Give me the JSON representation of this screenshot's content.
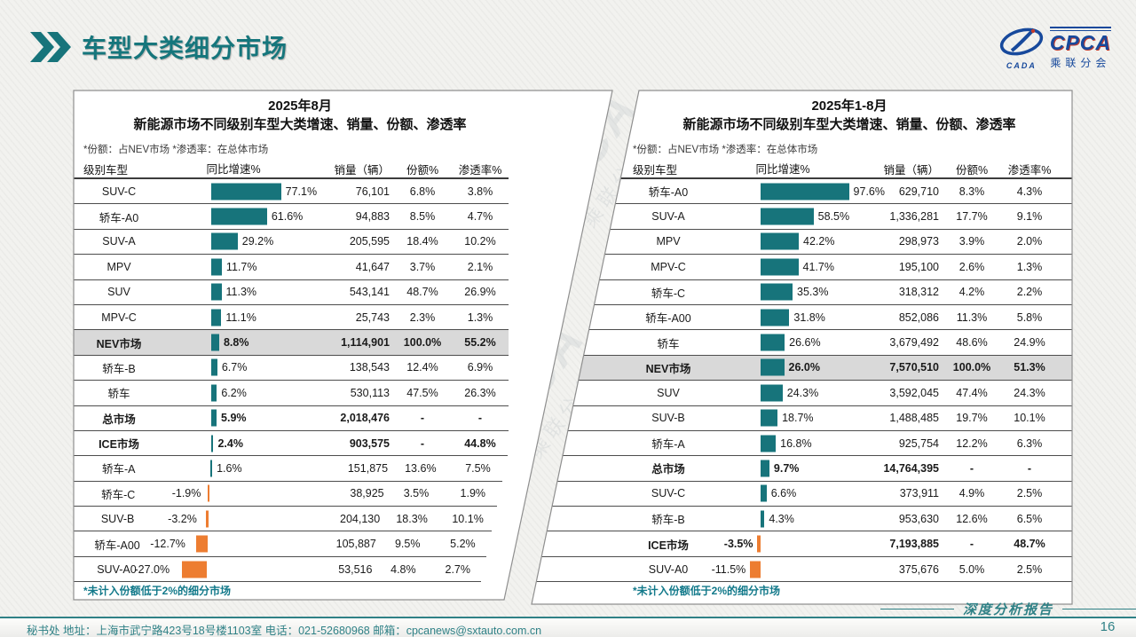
{
  "page": {
    "title": "车型大类细分市场",
    "page_number": "16",
    "report_label": "深度分析报告",
    "footer": "秘书处   地址：上海市武宁路423号18号楼1103室  电话：021-52680968   邮箱：cpcanews@sxtauto.com.cn",
    "watermark": {
      "line1": "CPCA",
      "line2": "乘联分会"
    }
  },
  "logo": {
    "cada": "CADA",
    "cpca": "CPCA",
    "sub": "乘联分会"
  },
  "colors": {
    "accent_teal": "#17747b",
    "accent_orange": "#ed7d31",
    "title_teal": "#16767c",
    "footer_teal": "#2f8186",
    "logo_blue": "#17499c",
    "highlight_gray": "#d9d9d9"
  },
  "chart_data": {
    "type": "bar",
    "orientation": "horizontal",
    "bar_unit": "percent",
    "panels": [
      {
        "period": "2025年8月",
        "title": "新能源市场不同级别车型大类增速、销量、份额、渗透率",
        "note": "*份额：占NEV市场  *渗透率：在总体市场",
        "columns": [
          "级别车型",
          "同比增速%",
          "销量（辆）",
          "份额%",
          "渗透率%"
        ],
        "footnote": "*未计入份额低于2%的细分市场",
        "rows": [
          {
            "category": "SUV-C",
            "growth": 77.1,
            "sales": "76,101",
            "share": "6.8%",
            "penetration": "3.8%",
            "bold": false,
            "highlight": false
          },
          {
            "category": "轿车-A0",
            "growth": 61.6,
            "sales": "94,883",
            "share": "8.5%",
            "penetration": "4.7%",
            "bold": false,
            "highlight": false
          },
          {
            "category": "SUV-A",
            "growth": 29.2,
            "sales": "205,595",
            "share": "18.4%",
            "penetration": "10.2%",
            "bold": false,
            "highlight": false
          },
          {
            "category": "MPV",
            "growth": 11.7,
            "sales": "41,647",
            "share": "3.7%",
            "penetration": "2.1%",
            "bold": false,
            "highlight": false
          },
          {
            "category": "SUV",
            "growth": 11.3,
            "sales": "543,141",
            "share": "48.7%",
            "penetration": "26.9%",
            "bold": false,
            "highlight": false
          },
          {
            "category": "MPV-C",
            "growth": 11.1,
            "sales": "25,743",
            "share": "2.3%",
            "penetration": "1.3%",
            "bold": false,
            "highlight": false
          },
          {
            "category": "NEV市场",
            "growth": 8.8,
            "sales": "1,114,901",
            "share": "100.0%",
            "penetration": "55.2%",
            "bold": true,
            "highlight": true
          },
          {
            "category": "轿车-B",
            "growth": 6.7,
            "sales": "138,543",
            "share": "12.4%",
            "penetration": "6.9%",
            "bold": false,
            "highlight": false
          },
          {
            "category": "轿车",
            "growth": 6.2,
            "sales": "530,113",
            "share": "47.5%",
            "penetration": "26.3%",
            "bold": false,
            "highlight": false
          },
          {
            "category": "总市场",
            "growth": 5.9,
            "sales": "2,018,476",
            "share": "-",
            "penetration": "-",
            "bold": true,
            "highlight": false
          },
          {
            "category": "ICE市场",
            "growth": 2.4,
            "sales": "903,575",
            "share": "-",
            "penetration": "44.8%",
            "bold": true,
            "highlight": false
          },
          {
            "category": "轿车-A",
            "growth": 1.6,
            "sales": "151,875",
            "share": "13.6%",
            "penetration": "7.5%",
            "bold": false,
            "highlight": false
          },
          {
            "category": "轿车-C",
            "growth": -1.9,
            "sales": "38,925",
            "share": "3.5%",
            "penetration": "1.9%",
            "bold": false,
            "highlight": false
          },
          {
            "category": "SUV-B",
            "growth": -3.2,
            "sales": "204,130",
            "share": "18.3%",
            "penetration": "10.1%",
            "bold": false,
            "highlight": false
          },
          {
            "category": "轿车-A00",
            "growth": -12.7,
            "sales": "105,887",
            "share": "9.5%",
            "penetration": "5.2%",
            "bold": false,
            "highlight": false
          },
          {
            "category": "SUV-A0",
            "growth": -27.0,
            "sales": "53,516",
            "share": "4.8%",
            "penetration": "2.7%",
            "bold": false,
            "highlight": false
          }
        ]
      },
      {
        "period": "2025年1-8月",
        "title": "新能源市场不同级别车型大类增速、销量、份额、渗透率",
        "note": "*份额：占NEV市场  *渗透率：在总体市场",
        "columns": [
          "级别车型",
          "同比增速%",
          "销量（辆）",
          "份额%",
          "渗透率%"
        ],
        "footnote": "*未计入份额低于2%的细分市场",
        "rows": [
          {
            "category": "轿车-A0",
            "growth": 97.6,
            "sales": "629,710",
            "share": "8.3%",
            "penetration": "4.3%",
            "bold": false,
            "highlight": false
          },
          {
            "category": "SUV-A",
            "growth": 58.5,
            "sales": "1,336,281",
            "share": "17.7%",
            "penetration": "9.1%",
            "bold": false,
            "highlight": false
          },
          {
            "category": "MPV",
            "growth": 42.2,
            "sales": "298,973",
            "share": "3.9%",
            "penetration": "2.0%",
            "bold": false,
            "highlight": false
          },
          {
            "category": "MPV-C",
            "growth": 41.7,
            "sales": "195,100",
            "share": "2.6%",
            "penetration": "1.3%",
            "bold": false,
            "highlight": false
          },
          {
            "category": "轿车-C",
            "growth": 35.3,
            "sales": "318,312",
            "share": "4.2%",
            "penetration": "2.2%",
            "bold": false,
            "highlight": false
          },
          {
            "category": "轿车-A00",
            "growth": 31.8,
            "sales": "852,086",
            "share": "11.3%",
            "penetration": "5.8%",
            "bold": false,
            "highlight": false
          },
          {
            "category": "轿车",
            "growth": 26.6,
            "sales": "3,679,492",
            "share": "48.6%",
            "penetration": "24.9%",
            "bold": false,
            "highlight": false
          },
          {
            "category": "NEV市场",
            "growth": 26.0,
            "sales": "7,570,510",
            "share": "100.0%",
            "penetration": "51.3%",
            "bold": true,
            "highlight": true
          },
          {
            "category": "SUV",
            "growth": 24.3,
            "sales": "3,592,045",
            "share": "47.4%",
            "penetration": "24.3%",
            "bold": false,
            "highlight": false
          },
          {
            "category": "SUV-B",
            "growth": 18.7,
            "sales": "1,488,485",
            "share": "19.7%",
            "penetration": "10.1%",
            "bold": false,
            "highlight": false
          },
          {
            "category": "轿车-A",
            "growth": 16.8,
            "sales": "925,754",
            "share": "12.2%",
            "penetration": "6.3%",
            "bold": false,
            "highlight": false
          },
          {
            "category": "总市场",
            "growth": 9.7,
            "sales": "14,764,395",
            "share": "-",
            "penetration": "-",
            "bold": true,
            "highlight": false
          },
          {
            "category": "SUV-C",
            "growth": 6.6,
            "sales": "373,911",
            "share": "4.9%",
            "penetration": "2.5%",
            "bold": false,
            "highlight": false
          },
          {
            "category": "轿车-B",
            "growth": 4.3,
            "sales": "953,630",
            "share": "12.6%",
            "penetration": "6.5%",
            "bold": false,
            "highlight": false
          },
          {
            "category": "ICE市场",
            "growth": -3.5,
            "sales": "7,193,885",
            "share": "-",
            "penetration": "48.7%",
            "bold": true,
            "highlight": false
          },
          {
            "category": "SUV-A0",
            "growth": -11.5,
            "sales": "375,676",
            "share": "5.0%",
            "penetration": "2.5%",
            "bold": false,
            "highlight": false
          }
        ]
      }
    ]
  }
}
